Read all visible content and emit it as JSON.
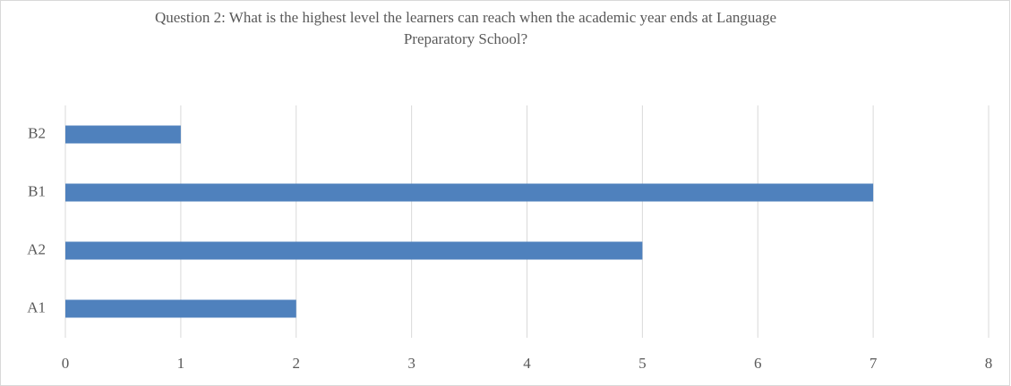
{
  "chart_data": {
    "type": "bar",
    "orientation": "horizontal",
    "title": "Question 2: What is the highest level the learners can reach when the academic year ends at Language Preparatory School?",
    "categories": [
      "A1",
      "A2",
      "B1",
      "B2"
    ],
    "values": [
      2,
      5,
      7,
      1
    ],
    "color": "#4f81bd",
    "xlim": [
      0,
      8
    ],
    "xticks": [
      0,
      1,
      2,
      3,
      4,
      5,
      6,
      7,
      8
    ],
    "grid": true
  }
}
